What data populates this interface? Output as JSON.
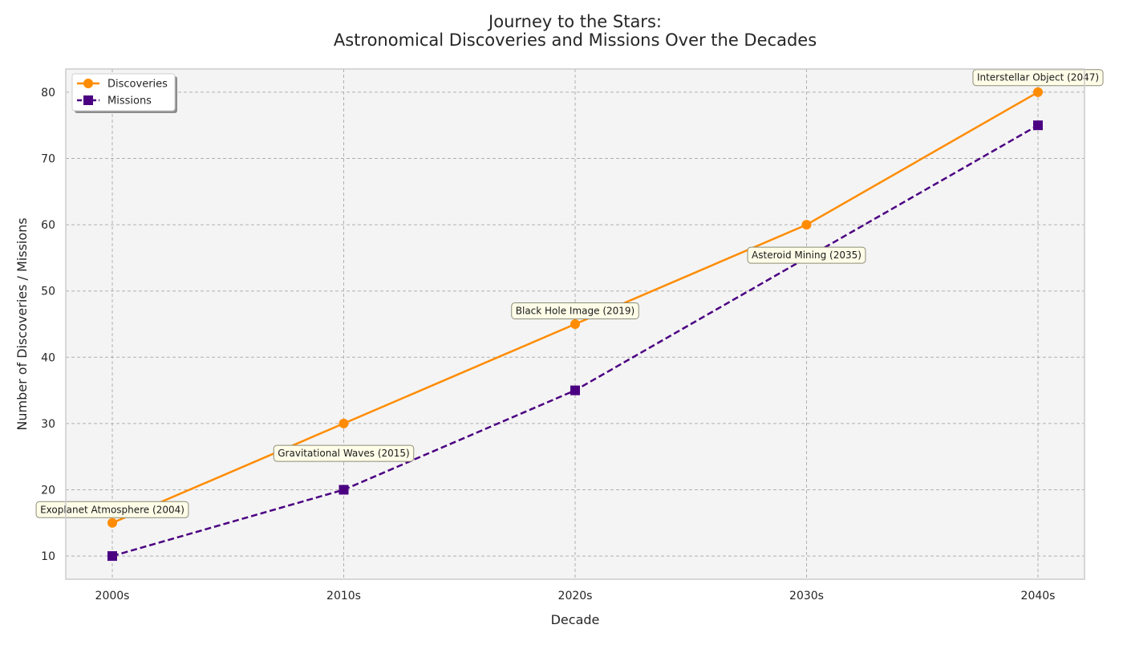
{
  "chart_data": {
    "type": "line",
    "title_line1": "Journey to the Stars:",
    "title_line2": "Astronomical Discoveries and Missions Over the Decades",
    "xlabel": "Decade",
    "ylabel": "Number of Discoveries / Missions",
    "categories": [
      "2000s",
      "2010s",
      "2020s",
      "2030s",
      "2040s"
    ],
    "yticks": [
      "10",
      "20",
      "30",
      "40",
      "50",
      "60",
      "70",
      "80"
    ],
    "ylim": [
      6.5,
      83.5
    ],
    "grid": true,
    "legend_position": "top-left",
    "series": [
      {
        "name": "Discoveries",
        "values": [
          15,
          30,
          45,
          60,
          80
        ],
        "color": "#ff8c00",
        "line_style": "solid",
        "marker": "circle"
      },
      {
        "name": "Missions",
        "values": [
          10,
          20,
          35,
          55,
          75
        ],
        "color": "#4b0082",
        "line_style": "dashed",
        "marker": "square"
      }
    ],
    "annotations": [
      {
        "text": "Exoplanet Atmosphere (2004)",
        "category_index": 0,
        "y": 17
      },
      {
        "text": "Gravitational Waves (2015)",
        "category_index": 1,
        "y": 25.5
      },
      {
        "text": "Black Hole Image (2019)",
        "category_index": 2,
        "y": 47
      },
      {
        "text": "Asteroid Mining (2035)",
        "category_index": 3,
        "y": 55.4
      },
      {
        "text": "Interstellar Object (2047)",
        "category_index": 4,
        "y": 82.2
      }
    ],
    "colors": {
      "plot_background": "#f4f4f4",
      "grid": "#b0b0b0",
      "axis_frame": "#cccccc",
      "annotation_fill": "#fffde8",
      "annotation_border": "#8c8c78",
      "text": "#262626"
    }
  }
}
